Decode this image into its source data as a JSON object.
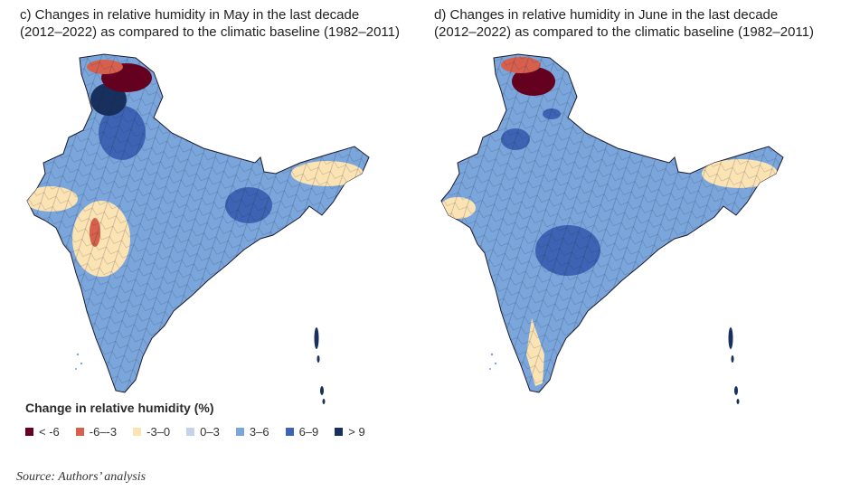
{
  "panels": [
    {
      "id": "c",
      "title_line1": "c) Changes in relative humidity in May in the last decade",
      "title_line2": "(2012–2022) as compared to the climatic baseline (1982–2011)"
    },
    {
      "id": "d",
      "title_line1": "d) Changes in relative humidity in June in the last decade",
      "title_line2": "(2012–2022) as compared to the climatic baseline (1982–2011)"
    }
  ],
  "legend": {
    "title": "Change in relative humidity (%)",
    "items": [
      {
        "label": "< -6",
        "color": "#67001f"
      },
      {
        "label": "-6–-3",
        "color": "#d6604d"
      },
      {
        "label": "-3–0",
        "color": "#fbe3b4"
      },
      {
        "label": "0–3",
        "color": "#c6d2ec"
      },
      {
        "label": "3–6",
        "color": "#7aa6dc"
      },
      {
        "label": "6–9",
        "color": "#3d64b4"
      },
      {
        "label": "> 9",
        "color": "#17305e"
      }
    ]
  },
  "source": "Source: Authors’ analysis",
  "colors": {
    "base": "#7aa6dc",
    "dry": "#fbe3b4",
    "moderate_dry": "#d6604d",
    "very_dry": "#67001f",
    "wet": "#3d64b4",
    "very_wet": "#17305e",
    "outline": "#1a1a2e"
  }
}
